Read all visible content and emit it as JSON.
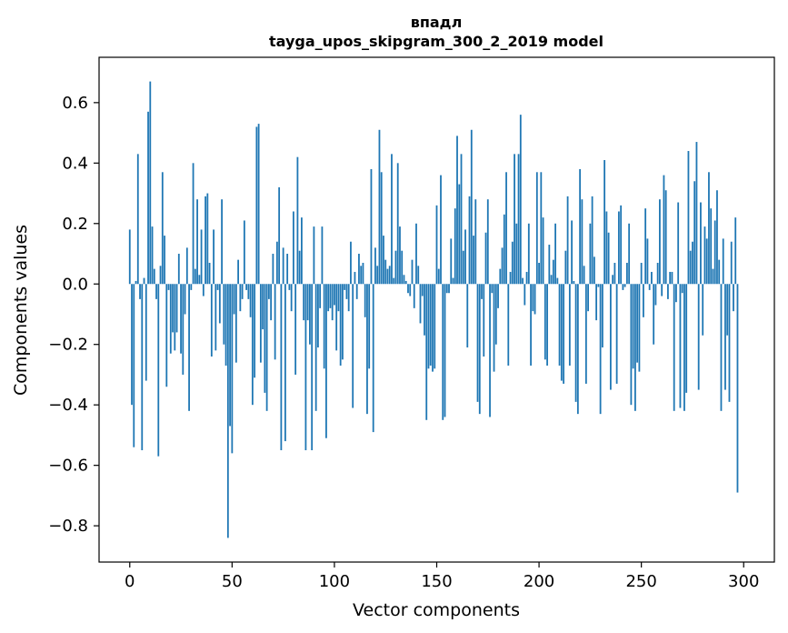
{
  "chart_data": {
    "type": "bar",
    "title": [
      "впадл",
      "tayga_upos_skipgram_300_2_2019 model"
    ],
    "xlabel": "Vector components",
    "ylabel": "Components values",
    "xlim": [
      -15,
      315
    ],
    "ylim": [
      -0.92,
      0.75
    ],
    "xticks": [
      0,
      50,
      100,
      150,
      200,
      250,
      300
    ],
    "xtick_labels": [
      "0",
      "50",
      "100",
      "150",
      "200",
      "250",
      "300"
    ],
    "yticks": [
      -0.8,
      -0.6,
      -0.4,
      -0.2,
      0.0,
      0.2,
      0.4,
      0.6
    ],
    "ytick_labels": [
      "−0.8",
      "−0.6",
      "−0.4",
      "−0.2",
      "0.0",
      "0.2",
      "0.4",
      "0.6"
    ],
    "bar_color": "#1f77b4",
    "grid": false,
    "values": [
      0.18,
      -0.4,
      -0.54,
      0.01,
      0.43,
      -0.05,
      -0.55,
      0.02,
      -0.32,
      0.57,
      0.67,
      0.19,
      0.05,
      -0.05,
      -0.57,
      0.06,
      0.37,
      0.16,
      -0.34,
      -0.02,
      -0.23,
      -0.16,
      -0.22,
      -0.16,
      0.1,
      -0.23,
      -0.3,
      -0.1,
      0.12,
      -0.42,
      -0.02,
      0.4,
      0.05,
      0.28,
      0.03,
      0.18,
      -0.04,
      0.29,
      0.3,
      0.07,
      -0.24,
      0.18,
      -0.22,
      -0.02,
      -0.13,
      0.28,
      -0.2,
      -0.27,
      -0.84,
      -0.47,
      -0.56,
      -0.1,
      -0.26,
      0.08,
      -0.09,
      -0.05,
      0.21,
      -0.02,
      -0.05,
      -0.11,
      -0.4,
      -0.31,
      0.52,
      0.53,
      -0.26,
      -0.15,
      -0.36,
      -0.42,
      -0.05,
      -0.12,
      0.1,
      -0.25,
      0.14,
      0.32,
      -0.55,
      0.12,
      -0.52,
      0.1,
      -0.02,
      -0.09,
      0.24,
      -0.3,
      0.42,
      0.11,
      0.22,
      -0.12,
      -0.55,
      -0.12,
      -0.2,
      -0.55,
      0.19,
      -0.42,
      -0.21,
      -0.08,
      0.19,
      -0.28,
      -0.51,
      -0.09,
      -0.08,
      -0.12,
      -0.07,
      -0.22,
      -0.09,
      -0.27,
      -0.25,
      -0.02,
      -0.05,
      -0.09,
      0.14,
      -0.41,
      0.04,
      -0.05,
      0.1,
      0.06,
      0.07,
      -0.11,
      -0.43,
      -0.28,
      0.38,
      -0.49,
      0.12,
      0.06,
      0.51,
      0.37,
      0.16,
      0.08,
      0.05,
      0.06,
      0.43,
      0.02,
      0.11,
      0.4,
      0.19,
      0.11,
      0.03,
      0.01,
      -0.03,
      -0.04,
      0.08,
      -0.08,
      0.2,
      0.06,
      -0.13,
      -0.04,
      -0.17,
      -0.45,
      -0.28,
      -0.27,
      -0.29,
      -0.28,
      0.26,
      0.05,
      0.36,
      -0.45,
      -0.44,
      -0.03,
      -0.03,
      0.15,
      0.02,
      0.25,
      0.49,
      0.33,
      0.43,
      0.11,
      0.18,
      -0.21,
      0.29,
      0.51,
      0.16,
      0.28,
      -0.39,
      -0.43,
      -0.05,
      -0.24,
      0.17,
      0.28,
      -0.44,
      -0.03,
      -0.29,
      -0.2,
      -0.08,
      0.05,
      0.12,
      0.23,
      0.37,
      -0.27,
      0.04,
      0.14,
      0.43,
      0.2,
      0.43,
      0.56,
      0.02,
      -0.07,
      0.04,
      0.2,
      -0.27,
      -0.09,
      -0.1,
      0.37,
      0.07,
      0.37,
      0.22,
      -0.25,
      -0.27,
      0.13,
      0.03,
      0.08,
      0.2,
      0.02,
      -0.27,
      -0.32,
      -0.33,
      0.11,
      0.29,
      -0.27,
      0.21,
      0.01,
      -0.39,
      -0.43,
      0.38,
      0.28,
      0.06,
      -0.33,
      -0.09,
      0.2,
      0.29,
      0.09,
      -0.12,
      -0.01,
      -0.43,
      -0.21,
      0.41,
      0.24,
      0.17,
      -0.35,
      0.03,
      0.07,
      -0.33,
      0.24,
      0.26,
      -0.02,
      -0.01,
      0.07,
      0.2,
      -0.4,
      -0.28,
      -0.42,
      -0.26,
      -0.29,
      0.07,
      -0.11,
      0.25,
      0.15,
      -0.02,
      0.04,
      -0.2,
      -0.07,
      0.07,
      0.28,
      -0.04,
      0.36,
      0.31,
      -0.05,
      0.04,
      0.04,
      -0.42,
      -0.06,
      0.27,
      -0.41,
      -0.03,
      -0.42,
      -0.36,
      0.44,
      0.11,
      0.14,
      0.34,
      0.47,
      -0.35,
      0.27,
      -0.17,
      0.19,
      0.15,
      0.37,
      0.25,
      0.05,
      0.21,
      0.31,
      0.08,
      -0.42,
      0.15,
      -0.35,
      -0.17,
      -0.39,
      0.14,
      -0.09,
      0.22,
      -0.69
    ]
  }
}
